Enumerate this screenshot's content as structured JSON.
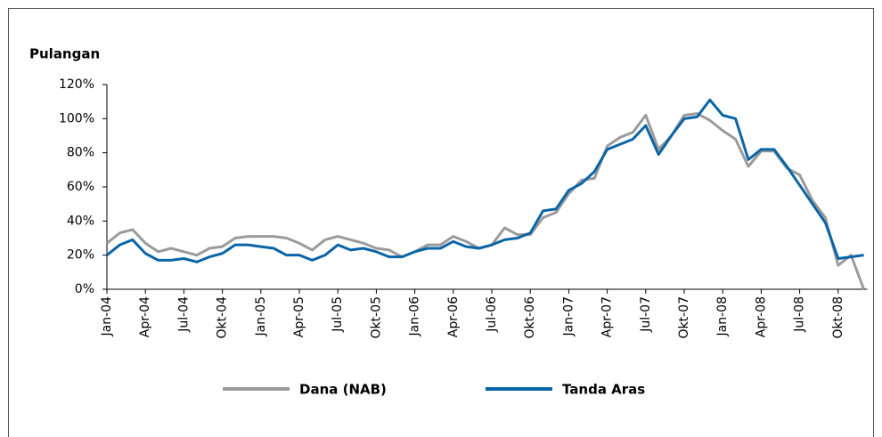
{
  "chart_data": {
    "type": "line",
    "title": "Pulangan",
    "categories": [
      "Jan-04",
      null,
      null,
      "Apr-04",
      null,
      null,
      "Jul-04",
      null,
      null,
      "Okt-04",
      null,
      null,
      "Jan-05",
      null,
      null,
      "Apr-05",
      null,
      null,
      "Jul-05",
      null,
      null,
      "Okt-05",
      null,
      null,
      "Jan-06",
      null,
      null,
      "Apr-06",
      null,
      null,
      "Jul-06",
      null,
      null,
      "Okt-06",
      null,
      null,
      "Jan-07",
      null,
      null,
      "Apr-07",
      null,
      null,
      "Jul-07",
      null,
      null,
      "Okt-07",
      null,
      null,
      "Jan-08",
      null,
      null,
      "Apr-08",
      null,
      null,
      "Jul-08",
      null,
      null,
      "Okt-08",
      null,
      null
    ],
    "series": [
      {
        "name": "Dana (NAB)",
        "color": "#9b9b9b",
        "values": [
          27,
          33,
          35,
          27,
          22,
          24,
          22,
          20,
          24,
          25,
          30,
          31,
          31,
          31,
          30,
          27,
          23,
          29,
          31,
          29,
          27,
          24,
          23,
          19,
          22,
          26,
          26,
          31,
          28,
          24,
          26,
          36,
          32,
          32,
          42,
          45,
          56,
          64,
          65,
          84,
          89,
          92,
          102,
          82,
          90,
          102,
          103,
          99,
          93,
          88,
          72,
          81,
          81,
          71,
          67,
          52,
          42,
          14,
          20,
          0
        ]
      },
      {
        "name": "Tanda Aras",
        "color": "#0a65a6",
        "values": [
          20,
          26,
          29,
          21,
          17,
          17,
          18,
          16,
          19,
          21,
          26,
          26,
          25,
          24,
          20,
          20,
          17,
          20,
          26,
          23,
          24,
          22,
          19,
          19,
          22,
          24,
          24,
          28,
          25,
          24,
          26,
          29,
          30,
          33,
          46,
          47,
          58,
          62,
          69,
          82,
          85,
          88,
          96,
          79,
          90,
          100,
          101,
          111,
          102,
          100,
          76,
          82,
          82,
          72,
          61,
          50,
          39,
          18,
          19,
          20
        ]
      }
    ],
    "ylim": [
      0,
      120
    ],
    "yticks": [
      {
        "value": 0,
        "label": "0%"
      },
      {
        "value": 20,
        "label": "20%"
      },
      {
        "value": 40,
        "label": "40%"
      },
      {
        "value": 60,
        "label": "60%"
      },
      {
        "value": 80,
        "label": "80%"
      },
      {
        "value": 100,
        "label": "100%"
      },
      {
        "value": 120,
        "label": "120%"
      }
    ],
    "legend": "bottom"
  }
}
